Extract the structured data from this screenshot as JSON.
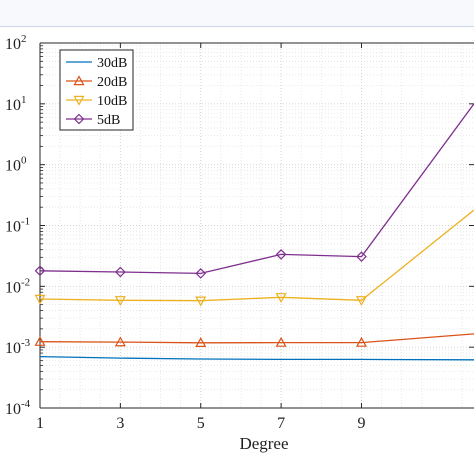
{
  "chart_data": {
    "type": "line",
    "xlabel": "Degree",
    "ylabel": "",
    "y_scale": "log",
    "xlim": [
      1,
      11.8
    ],
    "ylim": [
      0.0001,
      100
    ],
    "x_ticks": [
      1,
      3,
      5,
      7,
      9
    ],
    "y_ticks": [
      {
        "value": 0.0001,
        "base": "10",
        "exp": "-4"
      },
      {
        "value": 0.001,
        "base": "10",
        "exp": "-3"
      },
      {
        "value": 0.01,
        "base": "10",
        "exp": "-2"
      },
      {
        "value": 0.1,
        "base": "10",
        "exp": "-1"
      },
      {
        "value": 1,
        "base": "10",
        "exp": "0"
      },
      {
        "value": 10,
        "base": "10",
        "exp": "1"
      },
      {
        "value": 100,
        "base": "10",
        "exp": "2"
      }
    ],
    "grid": true,
    "legend_position": "top-left",
    "series": [
      {
        "name": "30dB",
        "color": "#0072BD",
        "marker": "none",
        "x": [
          1,
          3,
          5,
          7,
          9,
          11.8
        ],
        "y": [
          0.0007,
          0.00066,
          0.00064,
          0.00063,
          0.00063,
          0.00062
        ]
      },
      {
        "name": "20dB",
        "color": "#D95319",
        "marker": "triangle-up",
        "x": [
          1,
          3,
          5,
          7,
          9,
          11.8
        ],
        "y": [
          0.00123,
          0.00121,
          0.00118,
          0.00119,
          0.00119,
          0.00165
        ]
      },
      {
        "name": "10dB",
        "color": "#EDB120",
        "marker": "triangle-down",
        "x": [
          1,
          3,
          5,
          7,
          9,
          11.8
        ],
        "y": [
          0.0062,
          0.0059,
          0.0058,
          0.0066,
          0.0059,
          0.18
        ]
      },
      {
        "name": "5dB",
        "color": "#7E2F8E",
        "marker": "diamond",
        "x": [
          1,
          3,
          5,
          7,
          9,
          11.8
        ],
        "y": [
          0.018,
          0.0172,
          0.0163,
          0.0335,
          0.0308,
          10
        ]
      }
    ]
  }
}
